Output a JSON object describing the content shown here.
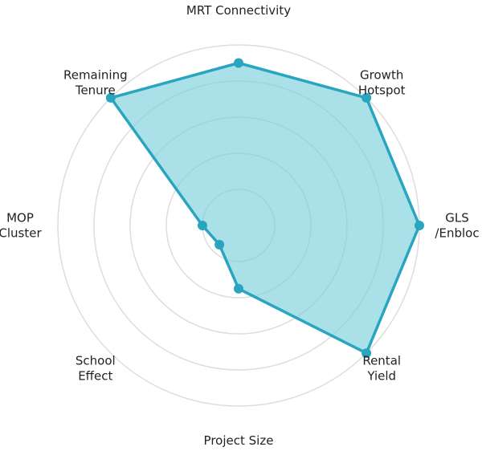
{
  "chart_data": {
    "type": "radar",
    "axes": [
      "MRT Connectivity",
      "Growth\nHotspot",
      "GLS\n/Enbloc",
      "Rental\nYield",
      "Project Size",
      "School\nEffect",
      "MOP\nCluster",
      "Remaining\nTenure"
    ],
    "values": [
      0.9,
      1.0,
      1.0,
      1.0,
      0.35,
      0.15,
      0.2,
      1.0
    ],
    "range": [
      0,
      1
    ],
    "rings": 5,
    "grid": true,
    "colors": {
      "line": "#2aa5bf",
      "fill": "#7dcfdb",
      "grid": "#dddddd",
      "text": "#222222"
    }
  }
}
